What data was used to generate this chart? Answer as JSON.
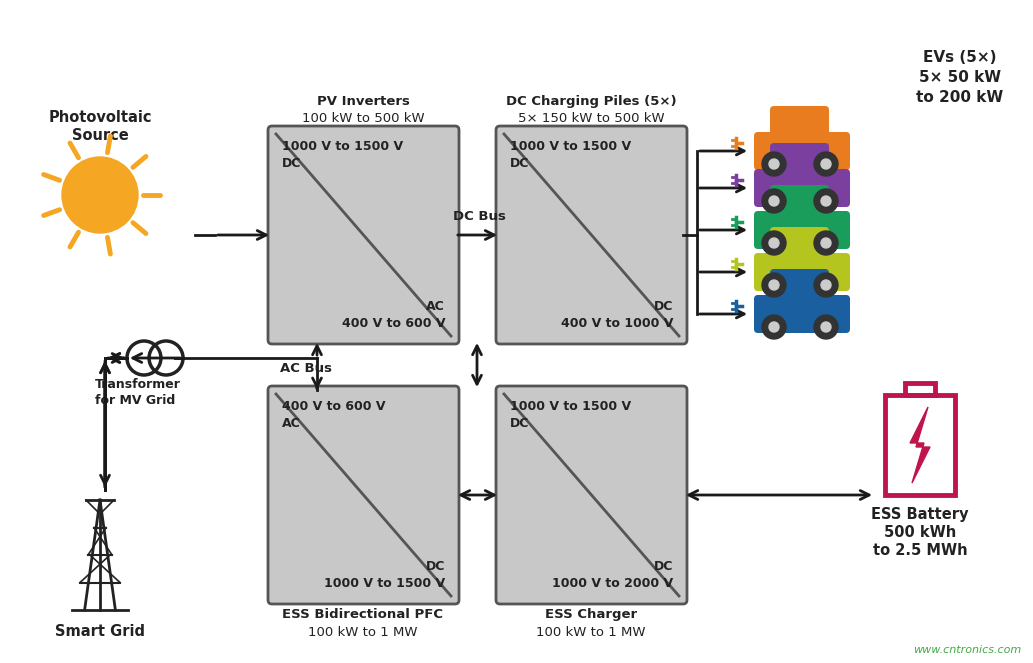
{
  "bg_color": "#ffffff",
  "box_fill": "#c8c8c8",
  "box_edge": "#555555",
  "arrow_color": "#1a1a1a",
  "text_color": "#222222",
  "crimson": "#c0144c",
  "watermark_color": "#44aa44",
  "sun_color": "#f5a623",
  "ev_colors": [
    "#e87c1e",
    "#7b3fa0",
    "#1a9c5a",
    "#b5c520",
    "#1a5fa0"
  ],
  "pv_inverter_top": "1000 V to 1500 V\nDC",
  "pv_inverter_bot": "AC\n400 V to 600 V",
  "dc_charging_top": "1000 V to 1500 V\nDC",
  "dc_charging_bot": "DC\n400 V to 1000 V",
  "ess_pfc_top": "400 V to 600 V\nAC",
  "ess_pfc_bot": "DC\n1000 V to 1500 V",
  "ess_charger_top": "1000 V to 1500 V\nDC",
  "ess_charger_bot": "DC\n1000 V to 2000 V",
  "pv_inverter_lbl": [
    "PV Inverters",
    "100 kW to 500 kW"
  ],
  "dc_charging_lbl": [
    "DC Charging Piles (5×)",
    "5× 150 kW to 500 kW"
  ],
  "ess_pfc_lbl": [
    "ESS Bidirectional PFC",
    "100 kW to 1 MW"
  ],
  "ess_charger_lbl": [
    "ESS Charger",
    "100 kW to 1 MW"
  ],
  "pv_source_lbl": [
    "Photovoltaic",
    "Source"
  ],
  "smart_grid_lbl": "Smart Grid",
  "transformer_lbl": [
    "Transformer",
    "for MV Grid"
  ],
  "evs_lbl": [
    "EVs (5×)",
    "5× 50 kW",
    "to 200 kW"
  ],
  "ess_battery_lbl": [
    "ESS Battery",
    "500 kWh",
    "to 2.5 MWh"
  ],
  "dc_bus_lbl": "DC Bus",
  "ac_bus_lbl": "AC Bus",
  "watermark": "www.cntronics.com"
}
